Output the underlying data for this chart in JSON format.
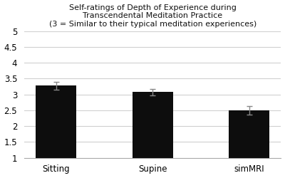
{
  "categories": [
    "Sitting",
    "Supine",
    "simMRI"
  ],
  "values": [
    3.28,
    3.08,
    2.5
  ],
  "errors": [
    0.12,
    0.1,
    0.14
  ],
  "bar_color": "#0d0d0d",
  "bar_width": 0.42,
  "title_line1": "Self-ratings of Depth of Experience during",
  "title_line2": "Transcendental Meditation Practice",
  "title_line3": "(3 = Similar to their typical meditation experiences)",
  "ylim_min": 1,
  "ylim_max": 5,
  "yticks": [
    1,
    1.5,
    2,
    2.5,
    3,
    3.5,
    4,
    4.5,
    5
  ],
  "title_fontsize": 8.0,
  "tick_fontsize": 8.5,
  "background_color": "#ffffff",
  "grid_color": "#d0d0d0",
  "error_color": "#888888",
  "capsize": 3
}
